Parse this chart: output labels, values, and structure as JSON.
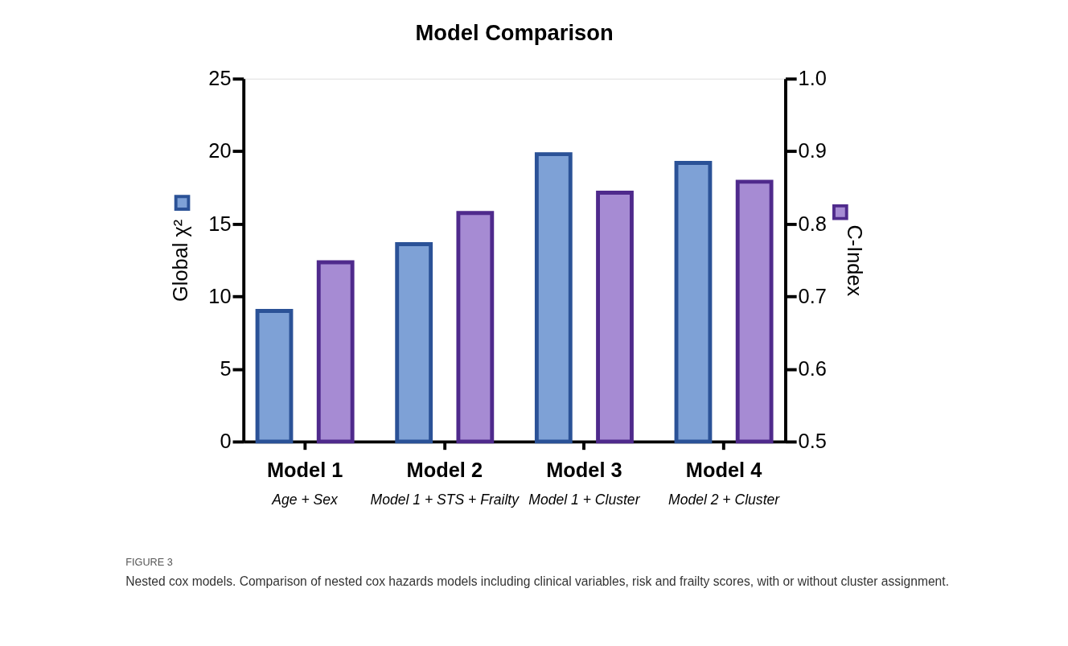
{
  "chart_data": {
    "type": "bar",
    "title": "Model Comparison",
    "categories": [
      "Model 1",
      "Model 2",
      "Model 3",
      "Model 4"
    ],
    "series": [
      {
        "name": "Global χ²",
        "color": "#7ea1d6",
        "values": [
          9.0,
          13.6,
          19.8,
          19.2
        ]
      },
      {
        "name": "C-Index",
        "color": "#a68bd3",
        "axis": "y2",
        "values": [
          0.747,
          0.815,
          0.843,
          0.858
        ]
      }
    ],
    "ylim": [
      0,
      25
    ],
    "yticks": [
      0,
      5,
      10,
      15,
      20,
      25
    ],
    "y2lim": [
      0.5,
      1.0
    ],
    "y2ticks": [
      {
        "value": 0.5,
        "label": "0.5"
      },
      {
        "value": 0.6,
        "label": "0.6"
      },
      {
        "value": 0.7,
        "label": "0.7"
      },
      {
        "value": 0.8,
        "label": "0.8"
      },
      {
        "value": 0.9,
        "label": "0.9"
      },
      {
        "value": 1.0,
        "label": "1.0"
      }
    ],
    "grid": false,
    "legend": "right",
    "annotations": [
      "Age + Sex",
      "Model 1 + STS + Frailty",
      "Model 1 + Cluster",
      "Model 2 + Cluster",
      "FIGURE 3",
      "Nested cox models. Comparison of nested cox hazards models including clinical variables, risk and frailty scores, with or without cluster assignment."
    ]
  }
}
